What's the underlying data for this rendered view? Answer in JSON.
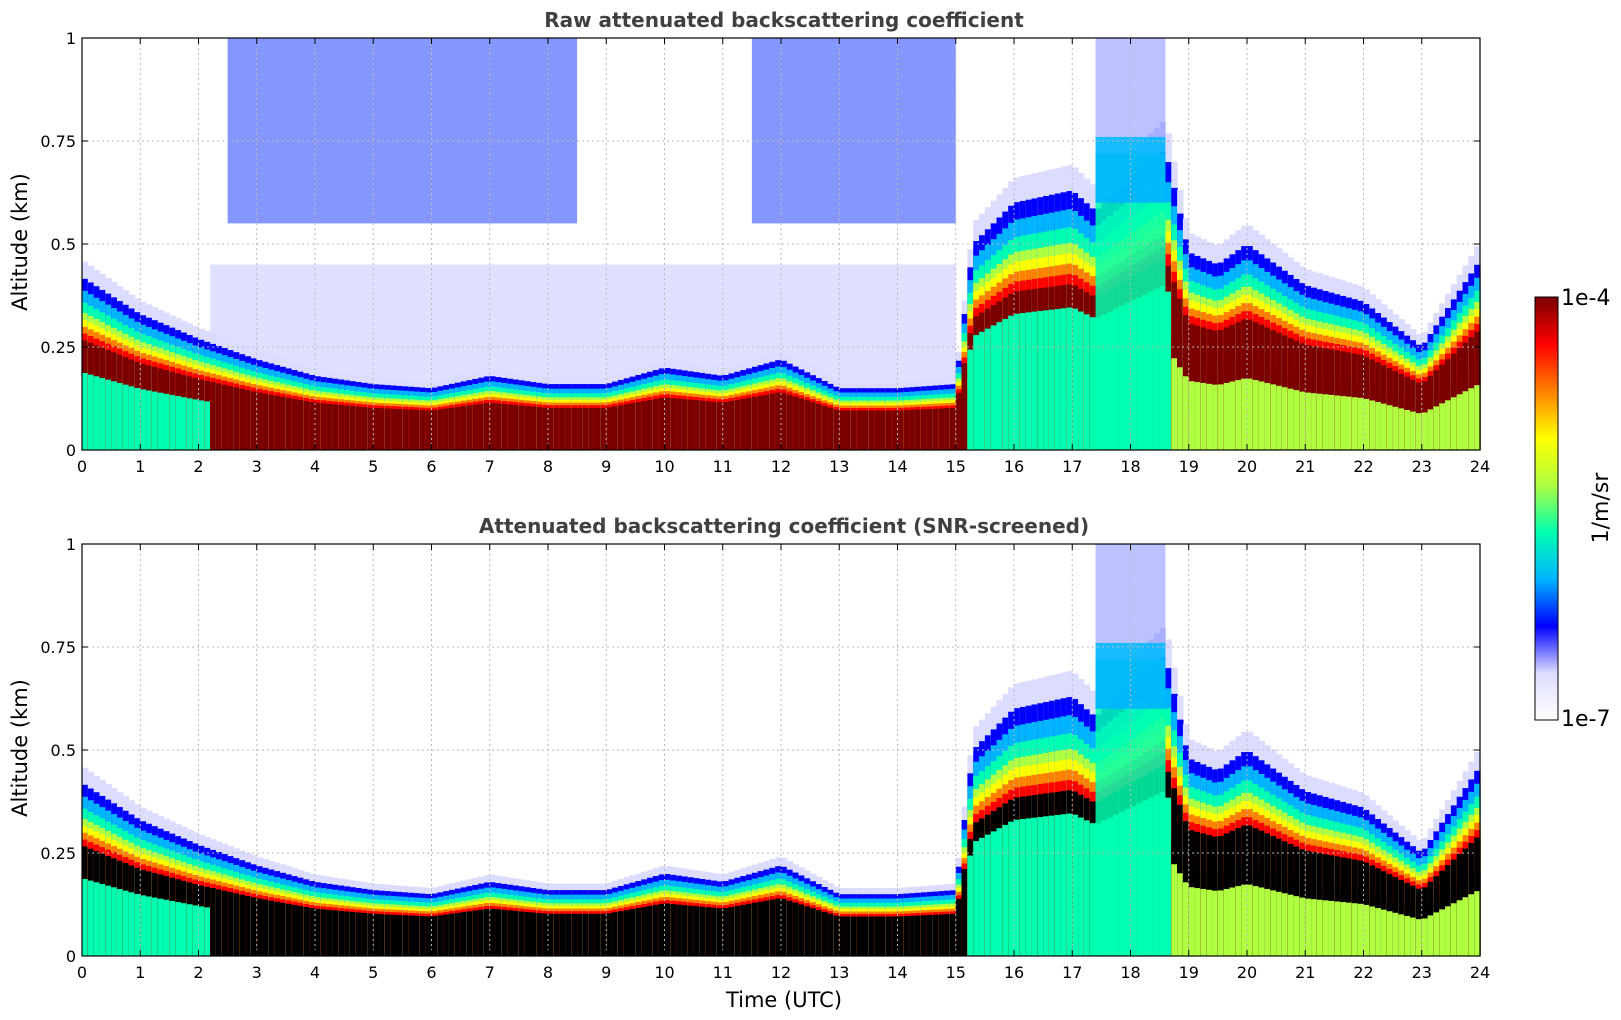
{
  "colormap": {
    "name": "jet-like",
    "stops": [
      "#ffffff",
      "#dcdcff",
      "#0000ff",
      "#00b4ff",
      "#00ffb0",
      "#b0ff40",
      "#ffff00",
      "#ff8000",
      "#ff0000",
      "#7a0000"
    ],
    "screened_saturation_color": "#000000"
  },
  "colorbar": {
    "top_label": "1e-4",
    "bottom_label": "1e-7",
    "unit_label": "1/m/sr",
    "scale": "log"
  },
  "chart_data": [
    {
      "type": "heatmap",
      "title": "Raw attenuated backscattering coefficient",
      "xlabel": "",
      "ylabel": "Altitude (km)",
      "xlim": [
        0,
        24
      ],
      "ylim": [
        0,
        1
      ],
      "xticks": [
        "0",
        "1",
        "2",
        "3",
        "4",
        "5",
        "6",
        "7",
        "8",
        "9",
        "10",
        "11",
        "12",
        "13",
        "14",
        "15",
        "16",
        "17",
        "18",
        "19",
        "20",
        "21",
        "22",
        "23",
        "24"
      ],
      "yticks": [
        "0",
        "0.25",
        "0.5",
        "0.75",
        "1"
      ],
      "grid": true,
      "screened": false,
      "layer_top_km": {
        "time_utc": [
          0,
          1,
          2,
          3,
          4,
          5,
          6,
          7,
          8,
          9,
          10,
          11,
          12,
          13,
          14,
          15,
          15.3,
          16,
          17,
          17.4,
          18.6,
          19,
          19.5,
          20,
          21,
          22,
          23,
          24
        ],
        "top_km": [
          0.42,
          0.33,
          0.27,
          0.22,
          0.18,
          0.16,
          0.15,
          0.18,
          0.16,
          0.16,
          0.2,
          0.18,
          0.22,
          0.15,
          0.15,
          0.16,
          0.5,
          0.6,
          0.63,
          0.58,
          0.73,
          0.48,
          0.45,
          0.5,
          0.4,
          0.36,
          0.25,
          0.46
        ]
      },
      "clutter_window_utc": [
        [
          2.5,
          8.5
        ],
        [
          11.5,
          15
        ]
      ]
    },
    {
      "type": "heatmap",
      "title": "Attenuated backscattering coefficient (SNR-screened)",
      "xlabel": "Time (UTC)",
      "ylabel": "Altitude (km)",
      "xlim": [
        0,
        24
      ],
      "ylim": [
        0,
        1
      ],
      "xticks": [
        "0",
        "1",
        "2",
        "3",
        "4",
        "5",
        "6",
        "7",
        "8",
        "9",
        "10",
        "11",
        "12",
        "13",
        "14",
        "15",
        "16",
        "17",
        "18",
        "19",
        "20",
        "21",
        "22",
        "23",
        "24"
      ],
      "yticks": [
        "0",
        "0.25",
        "0.5",
        "0.75",
        "1"
      ],
      "grid": true,
      "screened": true,
      "layer_top_km": {
        "time_utc": [
          0,
          1,
          2,
          3,
          4,
          5,
          6,
          7,
          8,
          9,
          10,
          11,
          12,
          13,
          14,
          15,
          15.3,
          16,
          17,
          17.4,
          18.6,
          19,
          19.5,
          20,
          21,
          22,
          23,
          24
        ],
        "top_km": [
          0.42,
          0.33,
          0.27,
          0.22,
          0.18,
          0.16,
          0.15,
          0.18,
          0.16,
          0.16,
          0.2,
          0.18,
          0.22,
          0.15,
          0.15,
          0.16,
          0.5,
          0.6,
          0.63,
          0.58,
          0.73,
          0.48,
          0.45,
          0.5,
          0.4,
          0.36,
          0.25,
          0.46
        ]
      }
    }
  ]
}
